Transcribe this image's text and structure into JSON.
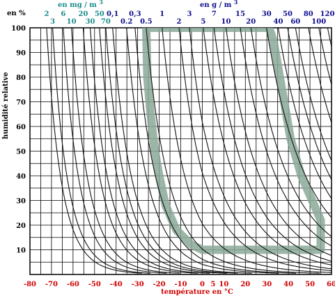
{
  "chart_data": {
    "type": "line",
    "x_label": "température en °C",
    "y_label": "humidité relative",
    "y_unit_label": "en %",
    "xlim": [
      -80,
      60
    ],
    "ylim": [
      0,
      100
    ],
    "x_ticks": [
      "-80",
      "-70",
      "-60",
      "-50",
      "-40",
      "-30",
      "-20",
      "-10",
      "0",
      "5",
      "10",
      "20",
      "30",
      "40",
      "50",
      "60"
    ],
    "x_tick_values": [
      -80,
      -70,
      -60,
      -50,
      -40,
      -30,
      -20,
      -10,
      0,
      5,
      10,
      20,
      30,
      40,
      50,
      60
    ],
    "y_ticks": [
      "10",
      "20",
      "30",
      "40",
      "50",
      "60",
      "70",
      "80",
      "90",
      "100"
    ],
    "y_tick_values": [
      10,
      20,
      30,
      40,
      50,
      60,
      70,
      80,
      90,
      100
    ],
    "grid": true,
    "top_axis_mg": {
      "unit_label": "en mg / m3",
      "color": "#1a8a8a",
      "labels_row1": [
        "2",
        "6",
        "20",
        "50"
      ],
      "labels_row1_values": [
        2,
        6,
        20,
        50
      ],
      "labels_row2": [
        "3",
        "10",
        "30",
        "70"
      ],
      "labels_row2_values": [
        3,
        10,
        30,
        70
      ]
    },
    "top_axis_g": {
      "unit_label": "en g / m3",
      "color": "#0a0a8a",
      "labels_row1": [
        "0,1",
        "0,3",
        "1",
        "3",
        "7",
        "15",
        "30",
        "50",
        "80",
        "120"
      ],
      "labels_row1_values": [
        0.1,
        0.3,
        1,
        3,
        7,
        15,
        30,
        50,
        80,
        120
      ],
      "labels_row2": [
        "0.2",
        "0.5",
        "2",
        "5",
        "10",
        "20",
        "40",
        "60",
        "100"
      ],
      "labels_row2_values": [
        0.2,
        0.5,
        2,
        5,
        10,
        20,
        40,
        60,
        100
      ]
    },
    "absolute_humidity_curves_g_m3": [
      0.002,
      0.003,
      0.006,
      0.01,
      0.02,
      0.03,
      0.05,
      0.07,
      0.1,
      0.2,
      0.3,
      0.5,
      1,
      2,
      3,
      5,
      7,
      10,
      15,
      20,
      30,
      40,
      50,
      60,
      80,
      100,
      120
    ],
    "comfort_zone_outline": {
      "color": "#8aa898",
      "points": [
        {
          "t": -26,
          "rh": 100
        },
        {
          "t": -25.5,
          "rh": 80
        },
        {
          "t": -24,
          "rh": 65
        },
        {
          "t": -22,
          "rh": 50
        },
        {
          "t": -20,
          "rh": 40
        },
        {
          "t": -17,
          "rh": 28
        },
        {
          "t": -12,
          "rh": 18
        },
        {
          "t": -5,
          "rh": 12
        },
        {
          "t": 0,
          "rh": 10
        },
        {
          "t": 55,
          "rh": 10
        },
        {
          "t": 55,
          "rh": 22
        },
        {
          "t": 51,
          "rh": 30
        },
        {
          "t": 46,
          "rh": 40
        },
        {
          "t": 41,
          "rh": 55
        },
        {
          "t": 38,
          "rh": 70
        },
        {
          "t": 35,
          "rh": 85
        },
        {
          "t": 33,
          "rh": 95
        },
        {
          "t": 31,
          "rh": 100
        },
        {
          "t": -26,
          "rh": 100
        }
      ]
    }
  }
}
